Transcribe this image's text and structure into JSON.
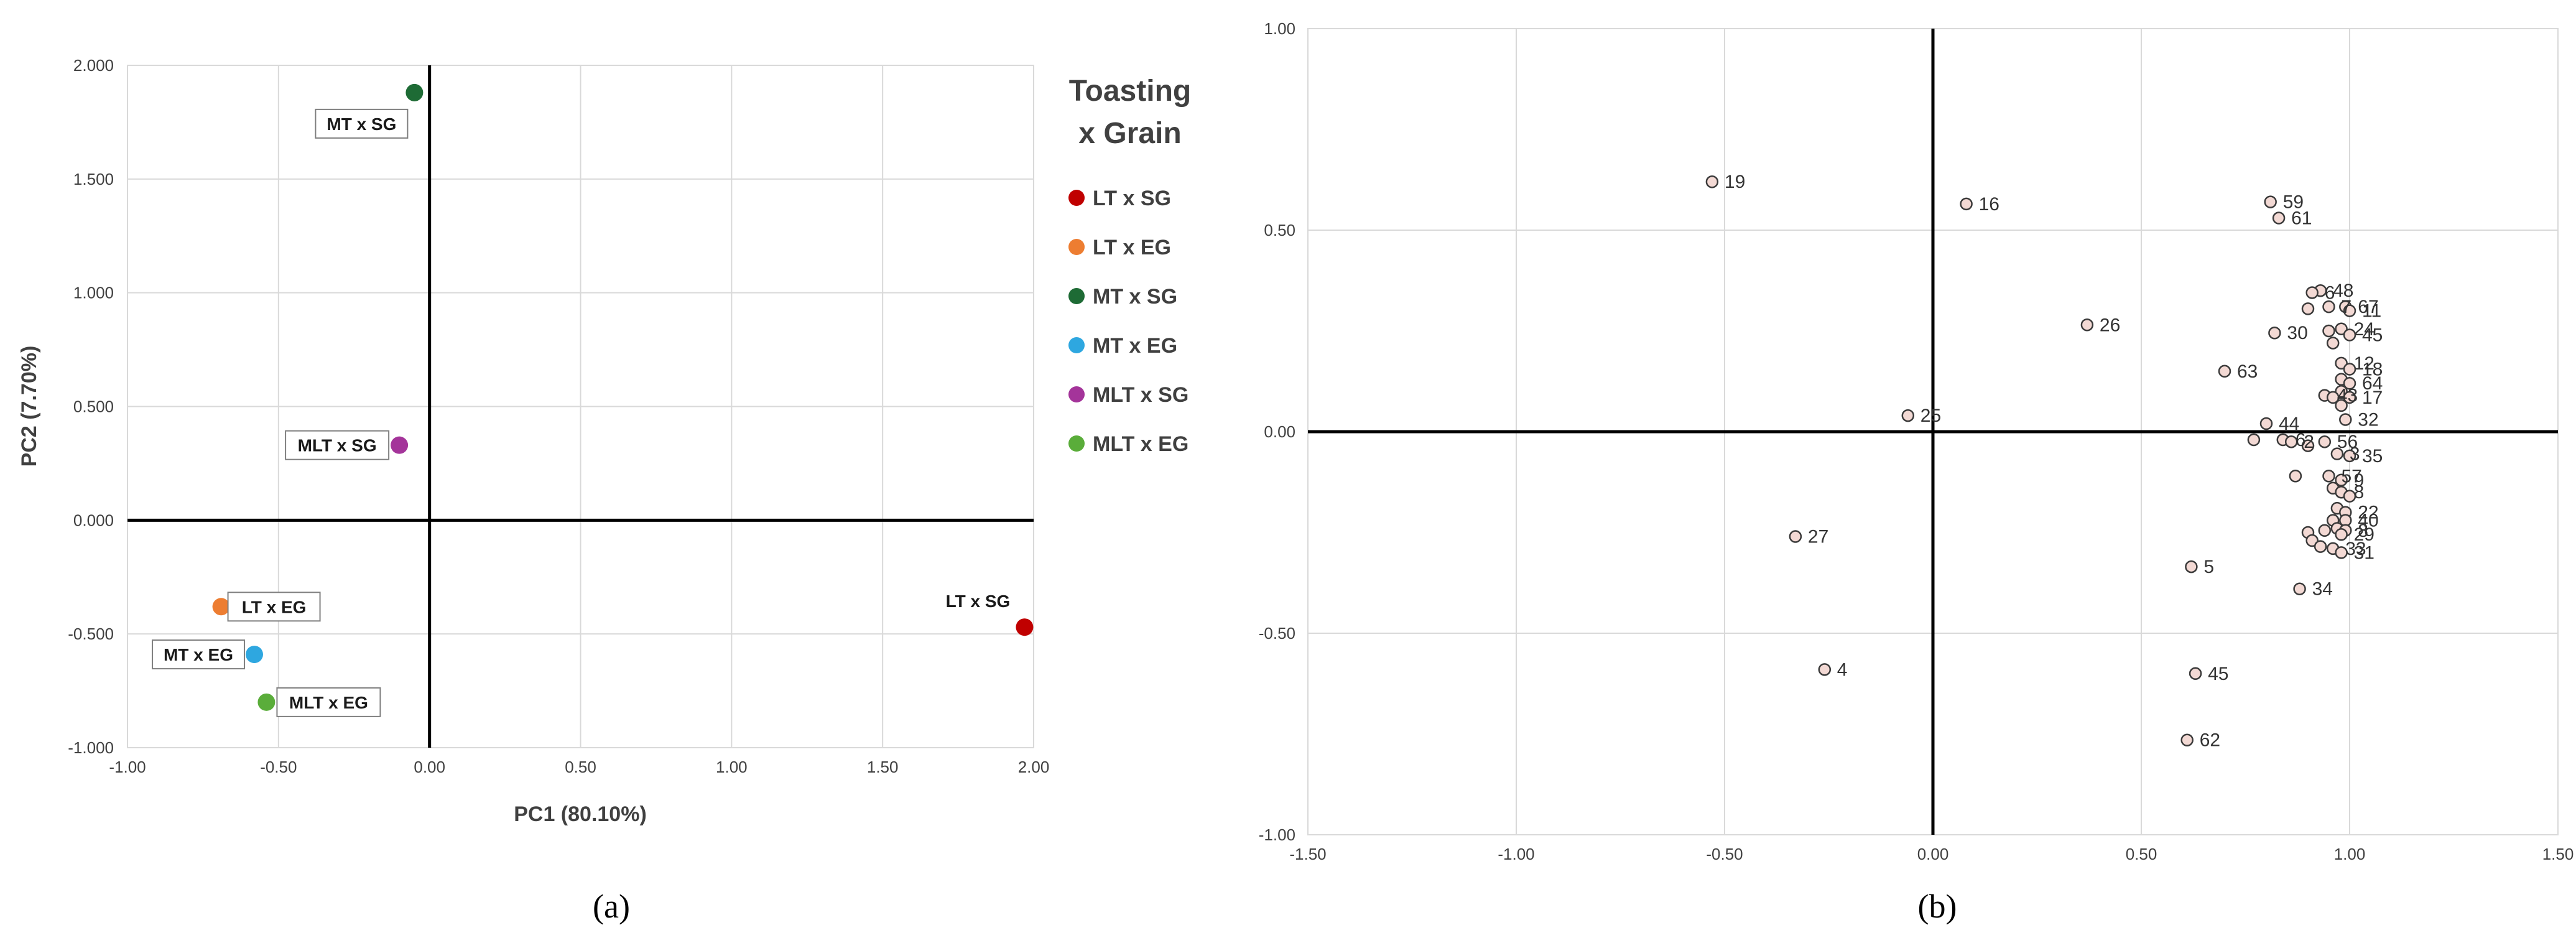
{
  "panels": {
    "a": "(a)",
    "b": "(b)"
  },
  "chart_data": [
    {
      "type": "scatter",
      "title": "",
      "xlabel": "PC1 (80.10%)",
      "ylabel": "PC2 (7.70%)",
      "xlim": [
        -1.0,
        2.0
      ],
      "ylim": [
        -1.0,
        2.0
      ],
      "x_ticks": [
        "-1.00",
        "-0.50",
        "0.00",
        "0.50",
        "1.00",
        "1.50",
        "2.00"
      ],
      "y_ticks": [
        "2.000",
        "1.500",
        "1.000",
        "0.500",
        "0.000",
        "-0.500",
        "-1.000"
      ],
      "grid": true,
      "legend": {
        "title_line1": "Toasting",
        "title_line2": "x Grain",
        "placement": "right"
      },
      "series": [
        {
          "name": "LT x SG",
          "color": "#c00000",
          "x": 1.97,
          "y": -0.47,
          "label": "LT x SG",
          "label_boxed": false
        },
        {
          "name": "LT x EG",
          "color": "#ed7d31",
          "x": -0.69,
          "y": -0.38,
          "label": "LT x EG",
          "label_boxed": true
        },
        {
          "name": "MT x SG",
          "color": "#1e6b35",
          "x": -0.05,
          "y": 1.88,
          "label": "MT x SG",
          "label_boxed": true
        },
        {
          "name": "MT x EG",
          "color": "#2ea7e0",
          "x": -0.58,
          "y": -0.59,
          "label": "MT x EG",
          "label_boxed": true
        },
        {
          "name": "MLT x SG",
          "color": "#a4349a",
          "x": -0.1,
          "y": 0.33,
          "label": "MLT x SG",
          "label_boxed": true
        },
        {
          "name": "MLT x EG",
          "color": "#5aad3a",
          "x": -0.54,
          "y": -0.8,
          "label": "MLT x EG",
          "label_boxed": true
        }
      ]
    },
    {
      "type": "scatter",
      "title": "",
      "xlabel": "",
      "ylabel": "",
      "xlim": [
        -1.5,
        1.5
      ],
      "ylim": [
        -1.0,
        1.0
      ],
      "x_ticks": [
        "-1.50",
        "-1.00",
        "-0.50",
        "0.00",
        "0.50",
        "1.00",
        "1.50"
      ],
      "y_ticks": [
        "1.00",
        "0.50",
        "0.00",
        "-0.50",
        "-1.00"
      ],
      "grid": true,
      "marker_fill": "#f3d9d4",
      "marker_stroke": "#3a3a3a",
      "points": [
        {
          "label": "19",
          "x": -0.53,
          "y": 0.62
        },
        {
          "label": "16",
          "x": 0.08,
          "y": 0.565
        },
        {
          "label": "59",
          "x": 0.81,
          "y": 0.57
        },
        {
          "label": "61",
          "x": 0.83,
          "y": 0.53
        },
        {
          "label": "26",
          "x": 0.37,
          "y": 0.265
        },
        {
          "label": "48",
          "x": 0.93,
          "y": 0.35
        },
        {
          "label": "6",
          "x": 0.91,
          "y": 0.345
        },
        {
          "label": "7",
          "x": 0.95,
          "y": 0.31
        },
        {
          "label": "67",
          "x": 0.99,
          "y": 0.31
        },
        {
          "label": "11",
          "x": 1.0,
          "y": 0.3
        },
        {
          "label": "",
          "x": 0.9,
          "y": 0.305
        },
        {
          "label": "30",
          "x": 0.82,
          "y": 0.245
        },
        {
          "label": "",
          "x": 0.95,
          "y": 0.25
        },
        {
          "label": "24",
          "x": 0.98,
          "y": 0.255
        },
        {
          "label": "45",
          "x": 1.0,
          "y": 0.24
        },
        {
          "label": "",
          "x": 0.96,
          "y": 0.22
        },
        {
          "label": "12",
          "x": 0.98,
          "y": 0.17
        },
        {
          "label": "18",
          "x": 1.0,
          "y": 0.155
        },
        {
          "label": "63",
          "x": 0.7,
          "y": 0.15
        },
        {
          "label": "",
          "x": 0.98,
          "y": 0.13
        },
        {
          "label": "64",
          "x": 1.0,
          "y": 0.12
        },
        {
          "label": "",
          "x": 0.98,
          "y": 0.1
        },
        {
          "label": "43",
          "x": 0.94,
          "y": 0.09
        },
        {
          "label": "17",
          "x": 1.0,
          "y": 0.085
        },
        {
          "label": "",
          "x": 0.96,
          "y": 0.085
        },
        {
          "label": "",
          "x": 0.98,
          "y": 0.065
        },
        {
          "label": "32",
          "x": 0.99,
          "y": 0.03
        },
        {
          "label": "25",
          "x": -0.06,
          "y": 0.04
        },
        {
          "label": "44",
          "x": 0.8,
          "y": 0.02
        },
        {
          "label": "",
          "x": 0.77,
          "y": -0.02
        },
        {
          "label": "6",
          "x": 0.84,
          "y": -0.02
        },
        {
          "label": "2",
          "x": 0.86,
          "y": -0.025
        },
        {
          "label": "",
          "x": 0.9,
          "y": -0.035
        },
        {
          "label": "56",
          "x": 0.94,
          "y": -0.025
        },
        {
          "label": "3",
          "x": 0.97,
          "y": -0.055
        },
        {
          "label": "35",
          "x": 1.0,
          "y": -0.06
        },
        {
          "label": "57",
          "x": 0.95,
          "y": -0.11
        },
        {
          "label": "",
          "x": 0.87,
          "y": -0.11
        },
        {
          "label": "9",
          "x": 0.98,
          "y": -0.12
        },
        {
          "label": "",
          "x": 0.96,
          "y": -0.14
        },
        {
          "label": "8",
          "x": 0.98,
          "y": -0.15
        },
        {
          "label": "",
          "x": 1.0,
          "y": -0.16
        },
        {
          "label": "",
          "x": 0.97,
          "y": -0.19
        },
        {
          "label": "22",
          "x": 0.99,
          "y": -0.2
        },
        {
          "label": "",
          "x": 0.96,
          "y": -0.22
        },
        {
          "label": "40",
          "x": 0.99,
          "y": -0.22
        },
        {
          "label": "",
          "x": 0.97,
          "y": -0.24
        },
        {
          "label": "8",
          "x": 0.99,
          "y": -0.245
        },
        {
          "label": "",
          "x": 0.94,
          "y": -0.245
        },
        {
          "label": "",
          "x": 0.9,
          "y": -0.25
        },
        {
          "label": "29",
          "x": 0.98,
          "y": -0.255
        },
        {
          "label": "",
          "x": 0.91,
          "y": -0.27
        },
        {
          "label": "",
          "x": 0.93,
          "y": -0.285
        },
        {
          "label": "33",
          "x": 0.96,
          "y": -0.29
        },
        {
          "label": "31",
          "x": 0.98,
          "y": -0.3
        },
        {
          "label": "27",
          "x": -0.33,
          "y": -0.26
        },
        {
          "label": "5",
          "x": 0.62,
          "y": -0.335
        },
        {
          "label": "34",
          "x": 0.88,
          "y": -0.39
        },
        {
          "label": "4",
          "x": -0.26,
          "y": -0.59
        },
        {
          "label": "45",
          "x": 0.63,
          "y": -0.6
        },
        {
          "label": "62",
          "x": 0.61,
          "y": -0.765
        }
      ]
    }
  ]
}
